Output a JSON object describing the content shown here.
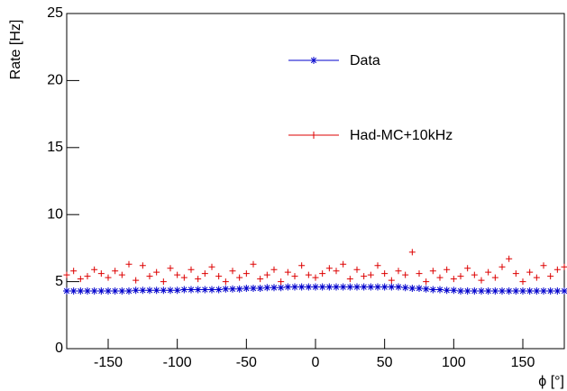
{
  "chart_data": {
    "type": "scatter",
    "xlabel": "ϕ [°]",
    "ylabel": "Rate [Hz]",
    "x": [
      -180,
      -175,
      -170,
      -165,
      -160,
      -155,
      -150,
      -145,
      -140,
      -135,
      -130,
      -125,
      -120,
      -115,
      -110,
      -105,
      -100,
      -95,
      -90,
      -85,
      -80,
      -75,
      -70,
      -65,
      -60,
      -55,
      -50,
      -45,
      -40,
      -35,
      -30,
      -25,
      -20,
      -15,
      -10,
      -5,
      0,
      5,
      10,
      15,
      20,
      25,
      30,
      35,
      40,
      45,
      50,
      55,
      60,
      65,
      70,
      75,
      80,
      85,
      90,
      95,
      100,
      105,
      110,
      115,
      120,
      125,
      130,
      135,
      140,
      145,
      150,
      155,
      160,
      165,
      170,
      175,
      180
    ],
    "series": [
      {
        "name": "Data",
        "color": "#0000cc",
        "marker": "asterisk",
        "values": [
          4.3,
          4.3,
          4.3,
          4.3,
          4.3,
          4.3,
          4.3,
          4.3,
          4.3,
          4.3,
          4.35,
          4.35,
          4.35,
          4.35,
          4.35,
          4.35,
          4.35,
          4.4,
          4.4,
          4.4,
          4.4,
          4.4,
          4.4,
          4.45,
          4.45,
          4.45,
          4.5,
          4.5,
          4.5,
          4.55,
          4.55,
          4.55,
          4.6,
          4.6,
          4.6,
          4.6,
          4.6,
          4.6,
          4.6,
          4.6,
          4.6,
          4.6,
          4.6,
          4.6,
          4.6,
          4.6,
          4.6,
          4.6,
          4.6,
          4.55,
          4.5,
          4.5,
          4.45,
          4.4,
          4.4,
          4.35,
          4.35,
          4.3,
          4.3,
          4.3,
          4.3,
          4.3,
          4.3,
          4.3,
          4.3,
          4.3,
          4.3,
          4.3,
          4.3,
          4.3,
          4.3,
          4.3,
          4.3
        ]
      },
      {
        "name": "Had-MC+10kHz",
        "color": "#dd0000",
        "marker": "plus",
        "values": [
          5.5,
          5.8,
          5.2,
          5.4,
          5.9,
          5.6,
          5.3,
          5.8,
          5.5,
          6.3,
          5.1,
          6.2,
          5.4,
          5.7,
          5.0,
          6.0,
          5.5,
          5.3,
          5.9,
          5.2,
          5.6,
          6.1,
          5.4,
          5.0,
          5.8,
          5.3,
          5.6,
          6.3,
          5.2,
          5.5,
          5.9,
          5.0,
          5.7,
          5.4,
          6.2,
          5.5,
          5.3,
          5.6,
          6.0,
          5.8,
          6.3,
          5.2,
          5.9,
          5.4,
          5.5,
          6.2,
          5.6,
          5.1,
          5.8,
          5.5,
          7.2,
          5.6,
          5.0,
          5.8,
          5.3,
          5.9,
          5.2,
          5.4,
          6.0,
          5.5,
          5.1,
          5.7,
          5.3,
          6.1,
          6.7,
          5.6,
          5.0,
          5.7,
          5.3,
          6.2,
          5.4,
          5.9,
          6.1
        ]
      }
    ],
    "xlim": [
      -180,
      180
    ],
    "ylim": [
      0,
      25
    ],
    "xticks": [
      -150,
      -100,
      -50,
      0,
      50,
      100,
      150
    ],
    "yticks": [
      0,
      5,
      10,
      15,
      20,
      25
    ]
  }
}
